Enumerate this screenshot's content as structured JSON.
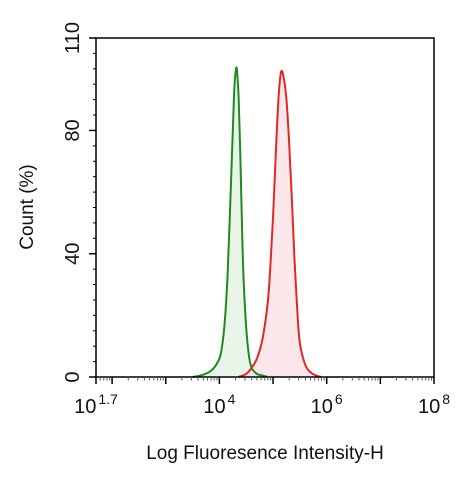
{
  "chart_data": {
    "type": "area",
    "title": "",
    "xlabel": "Log Fluoresence Intensity-H",
    "ylabel": "Count  (%)",
    "xscale": "log",
    "xlim": [
      1.7,
      8
    ],
    "ylim": [
      0,
      110
    ],
    "grid": false,
    "legend": "none",
    "yticks": [
      {
        "value": 0,
        "label": "0"
      },
      {
        "value": 40,
        "label": "40"
      },
      {
        "value": 80,
        "label": "80"
      },
      {
        "value": 110,
        "label": "110"
      }
    ],
    "xticks": [
      {
        "value": 1.7,
        "base": "10",
        "exp": "1.7"
      },
      {
        "value": 4,
        "base": "10",
        "exp": "4"
      },
      {
        "value": 6,
        "base": "10",
        "exp": "6"
      },
      {
        "value": 8,
        "base": "10",
        "exp": "8"
      }
    ],
    "series": [
      {
        "color": "#1f8a1f",
        "fill": "#e6f3e6",
        "x": [
          3.5,
          3.65,
          3.8,
          3.9,
          4.0,
          4.05,
          4.1,
          4.15,
          4.2,
          4.25,
          4.28,
          4.31,
          4.33,
          4.36,
          4.39,
          4.42,
          4.45,
          4.5,
          4.55,
          4.6,
          4.7,
          4.8,
          4.9
        ],
        "y": [
          0,
          0.5,
          1.5,
          3,
          6,
          10,
          18,
          32,
          55,
          80,
          94,
          100,
          99,
          90,
          72,
          50,
          32,
          16,
          7,
          3,
          1,
          0.5,
          0
        ]
      },
      {
        "color": "#e32626",
        "fill": "#fbe4e7",
        "x": [
          4.35,
          4.5,
          4.6,
          4.7,
          4.8,
          4.9,
          4.95,
          5.0,
          5.05,
          5.1,
          5.15,
          5.2,
          5.25,
          5.3,
          5.35,
          5.4,
          5.45,
          5.5,
          5.6,
          5.7,
          5.8,
          5.9
        ],
        "y": [
          0,
          1,
          3,
          6,
          12,
          24,
          36,
          52,
          72,
          90,
          99,
          97,
          90,
          76,
          58,
          38,
          22,
          11,
          4,
          1.5,
          0.5,
          0
        ]
      }
    ]
  }
}
